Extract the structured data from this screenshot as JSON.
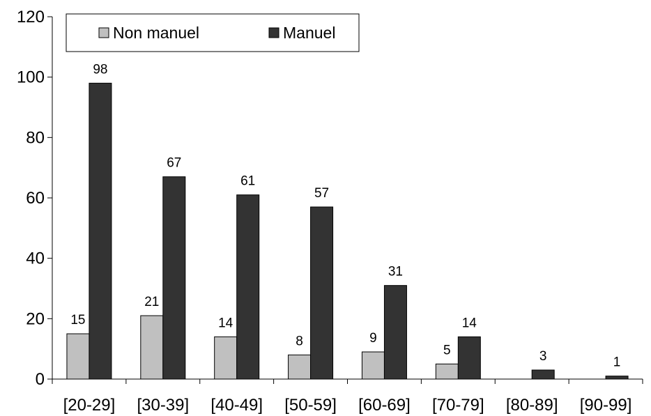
{
  "chart_data": {
    "type": "bar",
    "title": "",
    "xlabel": "",
    "ylabel": "",
    "ylim": [
      0,
      120
    ],
    "yticks": [
      0,
      20,
      40,
      60,
      80,
      100,
      120
    ],
    "grid": false,
    "legend_position": "top-left",
    "categories": [
      "[20-29]",
      "[30-39]",
      "[40-49]",
      "[50-59]",
      "[60-69]",
      "[70-79]",
      "[80-89]",
      "[90-99]"
    ],
    "series": [
      {
        "name": "Non manuel",
        "color": "#c0c0c0",
        "values": [
          15,
          21,
          14,
          8,
          9,
          5,
          0,
          0
        ],
        "labels": [
          "15",
          "21",
          "14",
          "8",
          "9",
          "5",
          "",
          ""
        ]
      },
      {
        "name": "Manuel",
        "color": "#333333",
        "values": [
          98,
          67,
          61,
          57,
          31,
          14,
          3,
          1
        ],
        "labels": [
          "98",
          "67",
          "61",
          "57",
          "31",
          "14",
          "3",
          "1"
        ]
      }
    ]
  }
}
